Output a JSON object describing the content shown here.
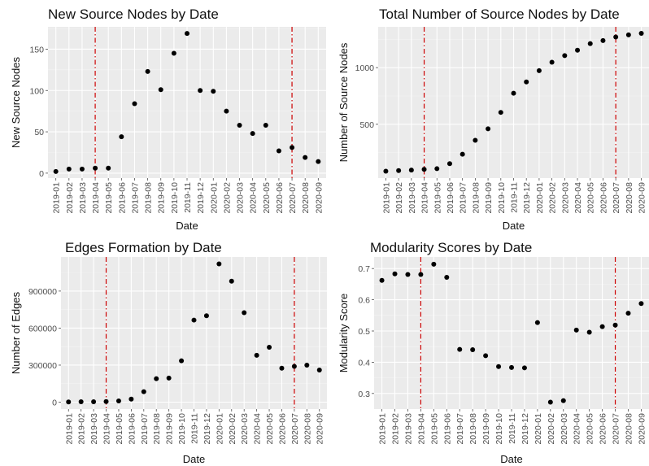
{
  "chart_data": [
    {
      "type": "scatter",
      "title": "New Source Nodes by Date",
      "xlabel": "Date",
      "ylabel": "New Source Nodes",
      "categories": [
        "2019-01",
        "2019-02",
        "2019-03",
        "2019-04",
        "2019-05",
        "2019-06",
        "2019-07",
        "2019-08",
        "2019-09",
        "2019-10",
        "2019-11",
        "2019-12",
        "2020-01",
        "2020-02",
        "2020-03",
        "2020-04",
        "2020-05",
        "2020-06",
        "2020-07",
        "2020-08",
        "2020-09"
      ],
      "values": [
        2,
        5,
        5,
        6,
        6,
        44,
        84,
        123,
        101,
        145,
        169,
        100,
        99,
        75,
        58,
        48,
        58,
        27,
        31,
        19,
        14
      ],
      "ylim": [
        -6,
        177
      ],
      "yticks": [
        0,
        50,
        100,
        150
      ],
      "ytick_labels": [
        "0",
        "50",
        "100",
        "150"
      ],
      "vlines": [
        "2019-04",
        "2020-07"
      ],
      "grid": true
    },
    {
      "type": "scatter",
      "title": "Total Number of Source Nodes by Date",
      "xlabel": "Date",
      "ylabel": "Number of Source Nodes",
      "categories": [
        "2019-01",
        "2019-02",
        "2019-03",
        "2019-04",
        "2019-05",
        "2019-06",
        "2019-07",
        "2019-08",
        "2019-09",
        "2019-10",
        "2019-11",
        "2019-12",
        "2020-01",
        "2020-02",
        "2020-03",
        "2020-04",
        "2020-05",
        "2020-06",
        "2020-07",
        "2020-08",
        "2020-09"
      ],
      "values": [
        86,
        91,
        96,
        102,
        108,
        152,
        236,
        359,
        460,
        605,
        774,
        874,
        973,
        1048,
        1106,
        1154,
        1212,
        1239,
        1270,
        1289,
        1303
      ],
      "ylim": [
        25,
        1360
      ],
      "yticks": [
        500,
        1000
      ],
      "ytick_labels": [
        "500",
        "1000"
      ],
      "vlines": [
        "2019-04",
        "2020-07"
      ],
      "grid": true
    },
    {
      "type": "scatter",
      "title": "Edges Formation by Date",
      "xlabel": "Date",
      "ylabel": "Number of Edges",
      "categories": [
        "2019-01",
        "2019-02",
        "2019-03",
        "2019-04",
        "2019-05",
        "2019-06",
        "2019-07",
        "2019-08",
        "2019-09",
        "2019-10",
        "2019-11",
        "2019-12",
        "2020-01",
        "2020-02",
        "2020-03",
        "2020-04",
        "2020-05",
        "2020-06",
        "2020-07",
        "2020-08",
        "2020-09"
      ],
      "values": [
        2000,
        3000,
        3000,
        5000,
        10000,
        25000,
        85000,
        190000,
        195000,
        335000,
        665000,
        700000,
        1120000,
        980000,
        725000,
        380000,
        445000,
        275000,
        290000,
        300000,
        260000
      ],
      "ylim": [
        -56000,
        1176000
      ],
      "yticks": [
        0,
        300000,
        600000,
        900000
      ],
      "ytick_labels": [
        "0",
        "300000",
        "600000",
        "900000"
      ],
      "vlines": [
        "2019-04",
        "2020-07"
      ],
      "grid": true
    },
    {
      "type": "scatter",
      "title": "Modularity Scores by Date",
      "xlabel": "Date",
      "ylabel": "Modularity Score",
      "categories": [
        "2019-01",
        "2019-02",
        "2019-03",
        "2019-04",
        "2019-05",
        "2019-06",
        "2019-07",
        "2019-08",
        "2019-09",
        "2019-10",
        "2019-11",
        "2019-12",
        "2020-01",
        "2020-02",
        "2020-03",
        "2020-04",
        "2020-05",
        "2020-06",
        "2020-07",
        "2020-08",
        "2020-09"
      ],
      "values": [
        0.662,
        0.683,
        0.681,
        0.681,
        0.714,
        0.672,
        0.441,
        0.44,
        0.421,
        0.386,
        0.383,
        0.382,
        0.527,
        0.272,
        0.277,
        0.503,
        0.496,
        0.514,
        0.519,
        0.557,
        0.588
      ],
      "ylim": [
        0.25,
        0.737
      ],
      "yticks": [
        0.3,
        0.4,
        0.5,
        0.6,
        0.7
      ],
      "ytick_labels": [
        "0.3",
        "0.4",
        "0.5",
        "0.6",
        "0.7"
      ],
      "vlines": [
        "2019-04",
        "2020-07"
      ],
      "grid": true
    }
  ],
  "style": {
    "panel_background": "#ebebeb",
    "grid_color": "#ffffff",
    "point_color": "#000000",
    "vline_color": "#cc0000",
    "vline_style": "dashdot"
  }
}
